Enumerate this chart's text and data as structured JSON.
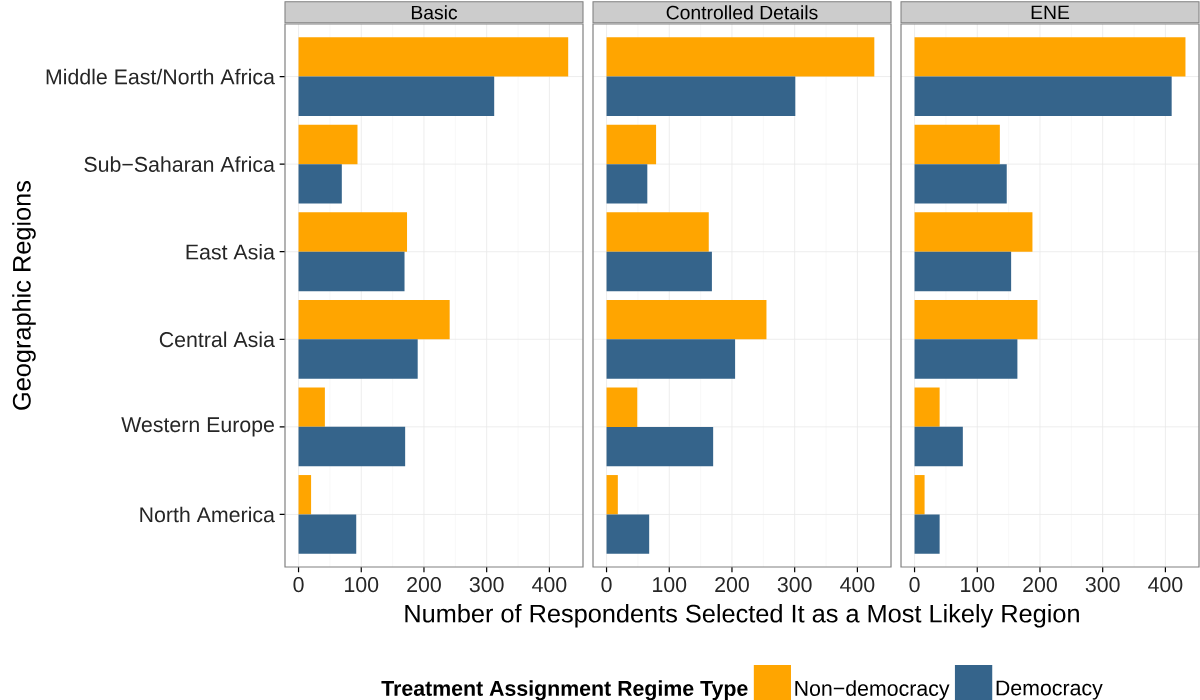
{
  "chart_data": [
    {
      "type": "bar",
      "orientation": "horizontal",
      "title": "Basic",
      "ylabel": "Geographic Regions",
      "categories": [
        "Middle East/North Africa",
        "Sub−Saharan Africa",
        "East Asia",
        "Central Asia",
        "Western Europe",
        "North America"
      ],
      "series": [
        {
          "color": "#ffa500",
          "values": [
            430,
            94,
            173,
            241,
            42,
            20
          ]
        },
        {
          "color": "#35648b",
          "values": [
            312,
            69,
            169,
            190,
            170,
            92
          ]
        }
      ],
      "xlim": [
        -21.6,
        453.6
      ],
      "xticks": [
        0,
        100,
        200,
        300,
        400
      ],
      "grid": true
    },
    {
      "type": "bar",
      "orientation": "horizontal",
      "title": "Controlled Details",
      "xlabel": "Number of Respondents Selected It as a Most Likely Region",
      "legend_title": "Treatment Assignment Regime Type",
      "legend": "bottom",
      "tick_labels": "x",
      "categories": [
        null,
        null,
        null,
        null,
        null,
        null
      ],
      "series": [
        {
          "name": "Non−democracy",
          "color": "#ffa500",
          "values": [
            427,
            79,
            163,
            255,
            49,
            18
          ]
        },
        {
          "name": "Democracy",
          "color": "#35648b",
          "values": [
            301,
            65,
            168,
            205,
            170,
            68
          ]
        }
      ],
      "xlim": [
        -21.6,
        453.6
      ],
      "xticks": [
        0,
        100,
        200,
        300,
        400
      ],
      "grid": true
    },
    {
      "type": "bar",
      "orientation": "horizontal",
      "title": "ENE",
      "tick_labels": "x",
      "categories": [
        null,
        null,
        null,
        null,
        null,
        null
      ],
      "series": [
        {
          "color": "#ffa500",
          "values": [
            432,
            136,
            188,
            196,
            40,
            16
          ]
        },
        {
          "color": "#35648b",
          "values": [
            410,
            147,
            154,
            164,
            77,
            40
          ]
        }
      ],
      "xlim": [
        -21.6,
        453.6
      ],
      "xticks": [
        0,
        100,
        200,
        300,
        400
      ],
      "grid": true
    }
  ]
}
